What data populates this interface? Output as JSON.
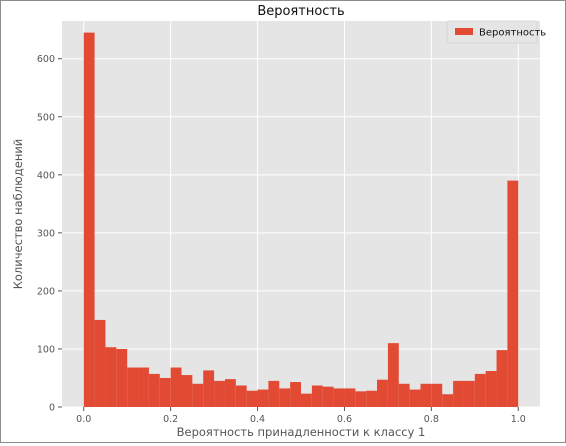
{
  "chart_data": {
    "type": "bar",
    "title": "Вероятность",
    "xlabel": "Вероятность принадленности к классу 1",
    "ylabel": "Количество наблюдений",
    "legend": {
      "position": "top-right",
      "entries": [
        "Вероятность"
      ]
    },
    "grid": true,
    "xlim": [
      -0.05,
      1.05
    ],
    "ylim": [
      0,
      665
    ],
    "xticks": [
      0.0,
      0.2,
      0.4,
      0.6,
      0.8,
      1.0
    ],
    "xtick_labels": [
      "0.0",
      "0.2",
      "0.4",
      "0.6",
      "0.8",
      "1.0"
    ],
    "yticks": [
      0,
      100,
      200,
      300,
      400,
      500,
      600
    ],
    "ytick_labels": [
      "0",
      "100",
      "200",
      "300",
      "400",
      "500",
      "600"
    ],
    "bin_edges": [
      0.0,
      0.025,
      0.05,
      0.075,
      0.1,
      0.125,
      0.15,
      0.175,
      0.2,
      0.225,
      0.25,
      0.275,
      0.3,
      0.325,
      0.35,
      0.375,
      0.4,
      0.425,
      0.45,
      0.475,
      0.5,
      0.525,
      0.55,
      0.575,
      0.6,
      0.625,
      0.65,
      0.675,
      0.7,
      0.725,
      0.75,
      0.775,
      0.8,
      0.825,
      0.85,
      0.875,
      0.9,
      0.925,
      0.95,
      0.975,
      1.0
    ],
    "series": [
      {
        "name": "Вероятность",
        "color": "#e24a33",
        "values": [
          645,
          150,
          103,
          100,
          68,
          68,
          57,
          50,
          68,
          55,
          40,
          63,
          45,
          48,
          37,
          28,
          30,
          45,
          32,
          43,
          23,
          37,
          35,
          32,
          32,
          27,
          28,
          47,
          110,
          40,
          30,
          40,
          40,
          22,
          45,
          45,
          57,
          62,
          98,
          390
        ]
      }
    ]
  }
}
